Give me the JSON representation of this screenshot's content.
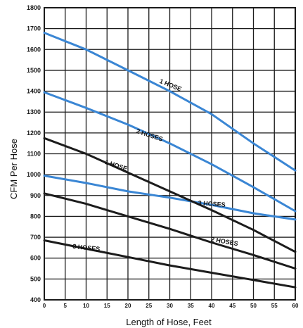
{
  "chart_data": {
    "type": "line",
    "title": "",
    "xlabel": "Length of Hose, Feet",
    "ylabel": "CFM Per Hose",
    "xlim": [
      0,
      60
    ],
    "ylim": [
      400,
      1800
    ],
    "x_ticks": [
      0,
      5,
      10,
      15,
      20,
      25,
      30,
      35,
      40,
      45,
      50,
      55,
      60
    ],
    "y_ticks": [
      400,
      500,
      600,
      700,
      800,
      900,
      1000,
      1100,
      1200,
      1300,
      1400,
      1500,
      1600,
      1700,
      1800
    ],
    "grid": true,
    "series": [
      {
        "name": "1 HOSE",
        "color": "#3a86d4",
        "x": [
          0,
          10,
          20,
          30,
          40,
          50,
          60
        ],
        "y": [
          1680,
          1600,
          1500,
          1400,
          1290,
          1150,
          1020
        ],
        "label_at": [
          30,
          1420
        ],
        "label_rotate": 22
      },
      {
        "name": "2 HOSES",
        "color": "#3a86d4",
        "x": [
          0,
          10,
          20,
          30,
          40,
          50,
          60
        ],
        "y": [
          1395,
          1320,
          1240,
          1150,
          1050,
          940,
          825
        ],
        "label_at": [
          25,
          1180
        ],
        "label_rotate": 18
      },
      {
        "name": "3 HOSES",
        "color": "#3a86d4",
        "x": [
          0,
          10,
          20,
          30,
          40,
          50,
          60
        ],
        "y": [
          995,
          960,
          920,
          890,
          855,
          815,
          785
        ],
        "label_at": [
          40,
          850
        ],
        "label_rotate": 4
      },
      {
        "name": "1 HOSE",
        "color": "#1c1c1c",
        "x": [
          0,
          10,
          20,
          30,
          40,
          50,
          60
        ],
        "y": [
          1175,
          1100,
          1010,
          920,
          830,
          735,
          630
        ],
        "label_at": [
          17,
          1035
        ],
        "label_rotate": 18
      },
      {
        "name": "2 HOSES",
        "color": "#1c1c1c",
        "x": [
          0,
          10,
          20,
          30,
          40,
          50,
          60
        ],
        "y": [
          910,
          860,
          800,
          740,
          675,
          615,
          550
        ],
        "label_at": [
          43,
          670
        ],
        "label_rotate": 10
      },
      {
        "name": "3 HOSES",
        "color": "#1c1c1c",
        "x": [
          0,
          10,
          20,
          30,
          40,
          50,
          60
        ],
        "y": [
          685,
          645,
          605,
          565,
          530,
          495,
          460
        ],
        "label_at": [
          10,
          640
        ],
        "label_rotate": 6
      }
    ]
  }
}
